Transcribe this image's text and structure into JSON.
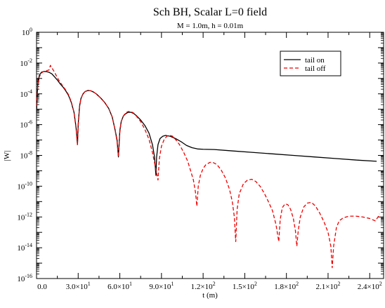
{
  "chart_data": {
    "type": "line",
    "title": "Sch BH, Scalar L=0 field",
    "subtitle": "M = 1.0m, h = 0.01m",
    "xlabel": "t (m)",
    "ylabel": "|W|",
    "xlim": [
      0,
      250
    ],
    "ylim_log10": [
      -16,
      0
    ],
    "yscale": "log",
    "x_ticks": [
      {
        "value": 0,
        "label": "0.0"
      },
      {
        "value": 30,
        "label_mantissa": "3.0",
        "label_exp": "1"
      },
      {
        "value": 60,
        "label_mantissa": "6.0",
        "label_exp": "1"
      },
      {
        "value": 90,
        "label_mantissa": "9.0",
        "label_exp": "1"
      },
      {
        "value": 120,
        "label_mantissa": "1.2",
        "label_exp": "2"
      },
      {
        "value": 150,
        "label_mantissa": "1.5",
        "label_exp": "2"
      },
      {
        "value": 180,
        "label_mantissa": "1.8",
        "label_exp": "2"
      },
      {
        "value": 210,
        "label_mantissa": "2.1",
        "label_exp": "2"
      },
      {
        "value": 240,
        "label_mantissa": "2.4",
        "label_exp": "2"
      }
    ],
    "y_ticks": [
      {
        "exp": 0,
        "label_exp": "0"
      },
      {
        "exp": -2,
        "label_exp": "-2"
      },
      {
        "exp": -4,
        "label_exp": "-4"
      },
      {
        "exp": -6,
        "label_exp": "-6"
      },
      {
        "exp": -8,
        "label_exp": "-8"
      },
      {
        "exp": -10,
        "label_exp": "-10"
      },
      {
        "exp": -12,
        "label_exp": "-12"
      },
      {
        "exp": -14,
        "label_exp": "-14"
      },
      {
        "exp": -16,
        "label_exp": "-16"
      }
    ],
    "tick_base": "10",
    "tick_times": "×",
    "grid": false,
    "legend_position": "top-right",
    "series": [
      {
        "name": "tail on",
        "color": "#000000",
        "dash": "solid",
        "points_log10": [
          [
            0.0,
            -5.2
          ],
          [
            1.0,
            -3.2
          ],
          [
            2.0,
            -2.8
          ],
          [
            3.5,
            -2.6
          ],
          [
            5.0,
            -2.55
          ],
          [
            7.0,
            -2.55
          ],
          [
            9.0,
            -2.6
          ],
          [
            11.0,
            -2.7
          ],
          [
            13.0,
            -2.9
          ],
          [
            15.0,
            -3.1
          ],
          [
            17.0,
            -3.35
          ],
          [
            19.0,
            -3.55
          ],
          [
            21.0,
            -3.8
          ],
          [
            23.0,
            -4.1
          ],
          [
            25.0,
            -4.55
          ],
          [
            27.0,
            -5.2
          ],
          [
            28.5,
            -6.2
          ],
          [
            29.5,
            -7.3
          ],
          [
            30.0,
            -6.0
          ],
          [
            31.0,
            -4.8
          ],
          [
            32.0,
            -4.3
          ],
          [
            33.5,
            -4.0
          ],
          [
            35.0,
            -3.85
          ],
          [
            37.0,
            -3.78
          ],
          [
            39.0,
            -3.8
          ],
          [
            41.0,
            -3.88
          ],
          [
            43.0,
            -4.0
          ],
          [
            46.0,
            -4.25
          ],
          [
            49.0,
            -4.55
          ],
          [
            52.0,
            -4.95
          ],
          [
            54.5,
            -5.5
          ],
          [
            56.5,
            -6.3
          ],
          [
            58.0,
            -7.0
          ],
          [
            59.0,
            -8.1
          ],
          [
            60.0,
            -6.4
          ],
          [
            61.0,
            -5.8
          ],
          [
            62.5,
            -5.45
          ],
          [
            64.0,
            -5.3
          ],
          [
            66.0,
            -5.2
          ],
          [
            68.0,
            -5.2
          ],
          [
            70.0,
            -5.28
          ],
          [
            72.0,
            -5.42
          ],
          [
            75.0,
            -5.7
          ],
          [
            78.0,
            -6.05
          ],
          [
            81.0,
            -6.55
          ],
          [
            83.5,
            -7.3
          ],
          [
            85.0,
            -8.1
          ],
          [
            86.0,
            -9.3
          ],
          [
            86.5,
            -8.1
          ],
          [
            87.5,
            -7.3
          ],
          [
            89.0,
            -6.9
          ],
          [
            91.0,
            -6.75
          ],
          [
            93.0,
            -6.7
          ],
          [
            96.0,
            -6.75
          ],
          [
            100.0,
            -6.9
          ],
          [
            104.0,
            -7.1
          ],
          [
            108.0,
            -7.35
          ],
          [
            112.0,
            -7.5
          ],
          [
            116.0,
            -7.58
          ],
          [
            120.0,
            -7.6
          ],
          [
            128.0,
            -7.62
          ],
          [
            140.0,
            -7.7
          ],
          [
            155.0,
            -7.8
          ],
          [
            170.0,
            -7.9
          ],
          [
            185.0,
            -8.0
          ],
          [
            200.0,
            -8.1
          ],
          [
            215.0,
            -8.2
          ],
          [
            230.0,
            -8.3
          ],
          [
            245.0,
            -8.38
          ]
        ]
      },
      {
        "name": "tail off",
        "color": "#ee0000",
        "dash": "5,3",
        "points_log10": [
          [
            0.0,
            -4.8
          ],
          [
            1.0,
            -3.3
          ],
          [
            2.0,
            -2.9
          ],
          [
            3.5,
            -2.65
          ],
          [
            5.0,
            -2.55
          ],
          [
            7.0,
            -2.5
          ],
          [
            9.0,
            -2.45
          ],
          [
            10.0,
            -2.15
          ],
          [
            11.0,
            -2.3
          ],
          [
            13.0,
            -2.6
          ],
          [
            15.0,
            -2.95
          ],
          [
            17.0,
            -3.25
          ],
          [
            19.0,
            -3.5
          ],
          [
            21.0,
            -3.75
          ],
          [
            23.0,
            -4.05
          ],
          [
            25.0,
            -4.5
          ],
          [
            27.0,
            -5.2
          ],
          [
            28.5,
            -6.3
          ],
          [
            29.5,
            -7.3
          ],
          [
            30.0,
            -6.1
          ],
          [
            31.0,
            -4.85
          ],
          [
            32.0,
            -4.3
          ],
          [
            33.5,
            -4.0
          ],
          [
            35.0,
            -3.85
          ],
          [
            37.0,
            -3.78
          ],
          [
            39.0,
            -3.8
          ],
          [
            41.0,
            -3.88
          ],
          [
            43.0,
            -4.0
          ],
          [
            46.0,
            -4.25
          ],
          [
            49.0,
            -4.55
          ],
          [
            52.0,
            -4.95
          ],
          [
            54.5,
            -5.5
          ],
          [
            56.5,
            -6.3
          ],
          [
            58.0,
            -7.1
          ],
          [
            59.0,
            -8.1
          ],
          [
            60.0,
            -6.5
          ],
          [
            61.0,
            -5.8
          ],
          [
            62.5,
            -5.45
          ],
          [
            64.0,
            -5.25
          ],
          [
            66.0,
            -5.15
          ],
          [
            68.0,
            -5.15
          ],
          [
            70.0,
            -5.25
          ],
          [
            72.0,
            -5.45
          ],
          [
            75.0,
            -5.8
          ],
          [
            78.0,
            -6.3
          ],
          [
            81.0,
            -6.95
          ],
          [
            83.5,
            -7.8
          ],
          [
            85.5,
            -8.7
          ],
          [
            87.5,
            -9.6
          ],
          [
            88.5,
            -8.2
          ],
          [
            90.0,
            -7.4
          ],
          [
            92.0,
            -6.95
          ],
          [
            94.0,
            -6.75
          ],
          [
            96.0,
            -6.7
          ],
          [
            98.0,
            -6.75
          ],
          [
            100.0,
            -6.95
          ],
          [
            103.0,
            -7.3
          ],
          [
            106.0,
            -7.8
          ],
          [
            109.0,
            -8.4
          ],
          [
            111.0,
            -9.0
          ],
          [
            113.0,
            -9.6
          ],
          [
            114.5,
            -10.4
          ],
          [
            115.5,
            -11.3
          ],
          [
            116.5,
            -10.0
          ],
          [
            118.0,
            -9.3
          ],
          [
            120.0,
            -8.85
          ],
          [
            122.0,
            -8.6
          ],
          [
            125.0,
            -8.45
          ],
          [
            127.0,
            -8.45
          ],
          [
            130.0,
            -8.6
          ],
          [
            133.0,
            -8.95
          ],
          [
            136.0,
            -9.45
          ],
          [
            139.0,
            -10.2
          ],
          [
            141.0,
            -11.0
          ],
          [
            142.5,
            -12.0
          ],
          [
            143.5,
            -13.6
          ],
          [
            144.5,
            -11.5
          ],
          [
            146.0,
            -10.5
          ],
          [
            149.0,
            -9.85
          ],
          [
            152.0,
            -9.6
          ],
          [
            155.0,
            -9.55
          ],
          [
            158.0,
            -9.7
          ],
          [
            161.0,
            -10.0
          ],
          [
            164.0,
            -10.45
          ],
          [
            167.0,
            -11.0
          ],
          [
            170.0,
            -11.6
          ],
          [
            172.5,
            -12.5
          ],
          [
            174.5,
            -13.6
          ],
          [
            175.5,
            -12.2
          ],
          [
            177.0,
            -11.4
          ],
          [
            179.0,
            -11.15
          ],
          [
            181.0,
            -11.2
          ],
          [
            183.0,
            -11.5
          ],
          [
            185.0,
            -12.1
          ],
          [
            186.5,
            -12.9
          ],
          [
            187.5,
            -13.9
          ],
          [
            188.5,
            -12.9
          ],
          [
            190.0,
            -12.0
          ],
          [
            192.5,
            -11.35
          ],
          [
            195.0,
            -11.1
          ],
          [
            198.0,
            -11.05
          ],
          [
            201.0,
            -11.3
          ],
          [
            204.0,
            -11.75
          ],
          [
            207.0,
            -12.3
          ],
          [
            210.0,
            -13.0
          ],
          [
            212.0,
            -13.9
          ],
          [
            213.0,
            -15.3
          ],
          [
            214.0,
            -13.9
          ],
          [
            216.0,
            -12.7
          ],
          [
            218.0,
            -12.25
          ],
          [
            221.0,
            -12.05
          ],
          [
            225.0,
            -11.95
          ],
          [
            230.0,
            -11.95
          ],
          [
            235.0,
            -12.0
          ],
          [
            240.0,
            -12.1
          ],
          [
            244.0,
            -12.25
          ],
          [
            246.0,
            -12.0
          ],
          [
            247.0,
            -11.8
          ]
        ]
      }
    ]
  }
}
